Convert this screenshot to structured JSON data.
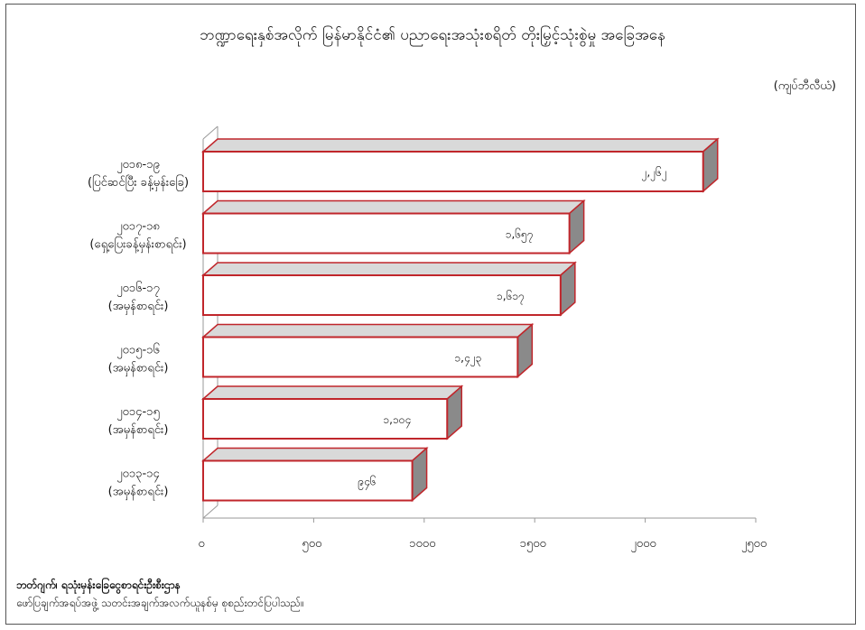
{
  "chart_data": {
    "type": "bar",
    "orientation": "horizontal",
    "title": "ဘဏ္ဍာရေးနှစ်အလိုက် မြန်မာနိုင်ငံ၏ ပညာရေးအသုံးစရိတ် တိုးမြှင့်သုံးစွဲမှု အခြေအနေ",
    "unit": "(ကျပ်ဘီလီယံ)",
    "categories": [
      [
        "၂၀၁၈-၁၉",
        "(ပြင်ဆင်ပြီး ခန့်မှန်းခြေ)"
      ],
      [
        "၂၀၁၇-၁၈",
        "(ရှေ့ပြေးခန့်မှန်းစာရင်း)"
      ],
      [
        "၂၀၁၆-၁၇",
        "(အမှန်စာရင်း)"
      ],
      [
        "၂၀၁၅-၁၆",
        "(အမှန်စာရင်း)"
      ],
      [
        "၂၀၁၄-၁၅",
        "(အမှန်စာရင်း)"
      ],
      [
        "၂၀၁၃-၁၄",
        "(အမှန်စာရင်း)"
      ]
    ],
    "values": [
      2262,
      1657,
      1617,
      1423,
      1104,
      946
    ],
    "value_labels": [
      "၂,၂၆၂",
      "၁,၆၅၇",
      "၁,၆၁၇",
      "၁,၄၂၃",
      "၁,၁၀၄",
      "၉၄၆"
    ],
    "x_ticks": [
      0,
      500,
      1000,
      1500,
      2000,
      2500
    ],
    "x_tick_labels": [
      "၀",
      "၅၀၀",
      "၁၀၀၀",
      "၁၅၀၀",
      "၂၀၀၀",
      "၂၅၀၀"
    ],
    "xlim": [
      0,
      2500
    ],
    "grid": false,
    "colors": {
      "bar_fill": "#ffffff",
      "bar_edge": "#c0262b",
      "bar_top": "#d9d9d9",
      "bar_side": "#8a8a8a"
    }
  },
  "source": {
    "line1": "ဘတ်ဂျက်၊ ရသုံးမှန်းခြေငွေစာရင်းဦးစီးဌာန",
    "line2": "ဖော်ပြချက်အရပ်အဖွဲ့ သတင်းအချက်အလက်ယူနစ်မှ စုစည်းတင်ပြပါသည်။"
  }
}
